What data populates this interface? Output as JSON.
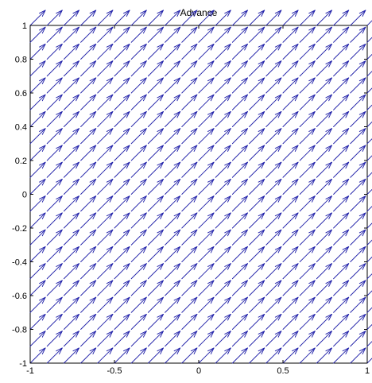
{
  "chart_data": {
    "type": "quiver",
    "title": "Advance",
    "xlabel": "",
    "ylabel": "",
    "xlim": [
      -1,
      1
    ],
    "ylim": [
      -1,
      1
    ],
    "grid": false,
    "legend": "none",
    "arrow_color": "#1f1fa8",
    "x_ticks": [
      {
        "value": -1,
        "label": "-1"
      },
      {
        "value": -0.5,
        "label": "-0.5"
      },
      {
        "value": 0,
        "label": "0"
      },
      {
        "value": 0.5,
        "label": "0.5"
      },
      {
        "value": 1,
        "label": "1"
      }
    ],
    "y_ticks": [
      {
        "value": -1,
        "label": "-1"
      },
      {
        "value": -0.8,
        "label": "-0.8"
      },
      {
        "value": -0.6,
        "label": "-0.6"
      },
      {
        "value": -0.4,
        "label": "-0.4"
      },
      {
        "value": -0.2,
        "label": "-0.2"
      },
      {
        "value": 0,
        "label": "0"
      },
      {
        "value": 0.2,
        "label": "0.2"
      },
      {
        "value": 0.4,
        "label": "0.4"
      },
      {
        "value": 0.6,
        "label": "0.6"
      },
      {
        "value": 0.8,
        "label": "0.8"
      },
      {
        "value": 1,
        "label": "1"
      }
    ],
    "vector_field": {
      "x_start": -1,
      "x_end": 1,
      "x_step": 0.1,
      "y_start": -1,
      "y_end": 1,
      "y_step": 0.1,
      "u": 1,
      "v": 1
    }
  }
}
